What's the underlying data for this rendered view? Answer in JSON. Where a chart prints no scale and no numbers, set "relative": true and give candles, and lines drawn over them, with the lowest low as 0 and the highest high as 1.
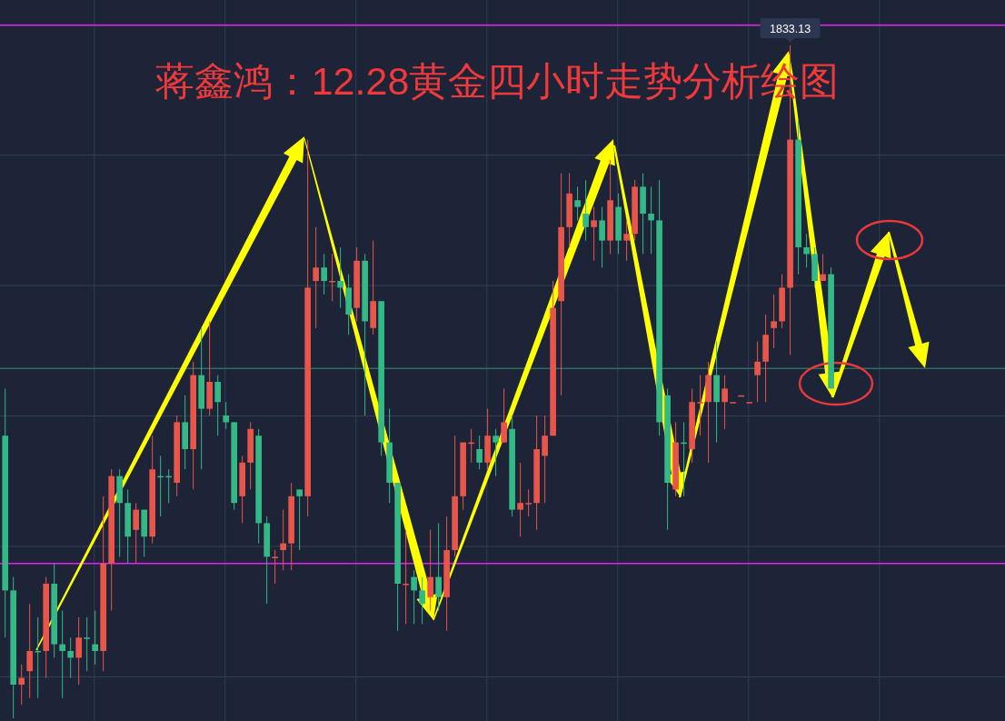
{
  "chart_data": {
    "type": "candlestick",
    "title": "蒋鑫鸿：12.28黄金四小时走势分析绘图",
    "relative": true,
    "categories": [
      null,
      null,
      null,
      null,
      null,
      null,
      null,
      null,
      null,
      null,
      null,
      null,
      null,
      null,
      null,
      null,
      null,
      null,
      null,
      null,
      null,
      null,
      null,
      null,
      null,
      null,
      null,
      null,
      null,
      null,
      null,
      null,
      null,
      null,
      null,
      null,
      null,
      null,
      null,
      null,
      null,
      null,
      null,
      null,
      null,
      null,
      null,
      null,
      null,
      null,
      null,
      null,
      null,
      null,
      null,
      null,
      null,
      null,
      null,
      null,
      null,
      null,
      null,
      null,
      null,
      null,
      null,
      null,
      null,
      null,
      null,
      null,
      null,
      null,
      null,
      null,
      null,
      null,
      null,
      null,
      null,
      null,
      null,
      null,
      null,
      null,
      null,
      null,
      null,
      null,
      null,
      null,
      null,
      null,
      null,
      null,
      null,
      null,
      null,
      null,
      null,
      null
    ],
    "ohlc": [
      [
        0.42,
        0.49,
        0.12,
        0.19
      ],
      [
        0.19,
        0.21,
        0.0,
        0.05
      ],
      [
        0.05,
        0.08,
        0.02,
        0.06
      ],
      [
        0.07,
        0.17,
        0.03,
        0.1
      ],
      [
        0.1,
        0.15,
        0.03,
        0.1
      ],
      [
        0.1,
        0.21,
        0.06,
        0.2
      ],
      [
        0.2,
        0.23,
        0.09,
        0.11
      ],
      [
        0.11,
        0.16,
        0.03,
        0.1
      ],
      [
        0.1,
        0.12,
        0.06,
        0.09
      ],
      [
        0.09,
        0.15,
        0.05,
        0.12
      ],
      [
        0.12,
        0.15,
        0.07,
        0.12
      ],
      [
        0.11,
        0.16,
        0.08,
        0.1
      ],
      [
        0.1,
        0.33,
        0.07,
        0.23
      ],
      [
        0.23,
        0.37,
        0.16,
        0.36
      ],
      [
        0.36,
        0.37,
        0.24,
        0.32
      ],
      [
        0.32,
        0.34,
        0.23,
        0.27
      ],
      [
        0.28,
        0.32,
        0.23,
        0.31
      ],
      [
        0.31,
        0.31,
        0.24,
        0.27
      ],
      [
        0.27,
        0.42,
        0.26,
        0.37
      ],
      [
        0.36,
        0.39,
        0.3,
        0.36
      ],
      [
        0.36,
        0.37,
        0.32,
        0.36
      ],
      [
        0.35,
        0.45,
        0.33,
        0.44
      ],
      [
        0.44,
        0.48,
        0.37,
        0.4
      ],
      [
        0.4,
        0.53,
        0.34,
        0.51
      ],
      [
        0.51,
        0.58,
        0.37,
        0.46
      ],
      [
        0.46,
        0.59,
        0.45,
        0.5
      ],
      [
        0.5,
        0.51,
        0.42,
        0.47
      ],
      [
        0.45,
        0.47,
        0.43,
        0.44
      ],
      [
        0.44,
        0.44,
        0.31,
        0.32
      ],
      [
        0.33,
        0.39,
        0.29,
        0.38
      ],
      [
        0.38,
        0.44,
        0.34,
        0.43
      ],
      [
        0.42,
        0.43,
        0.26,
        0.29
      ],
      [
        0.29,
        0.3,
        0.17,
        0.24
      ],
      [
        0.24,
        0.25,
        0.2,
        0.24
      ],
      [
        0.25,
        0.31,
        0.22,
        0.26
      ],
      [
        0.26,
        0.35,
        0.22,
        0.33
      ],
      [
        0.34,
        0.34,
        0.25,
        0.33
      ],
      [
        0.33,
        0.86,
        0.3,
        0.64
      ],
      [
        0.65,
        0.73,
        0.58,
        0.67
      ],
      [
        0.67,
        0.69,
        0.63,
        0.65
      ],
      [
        0.65,
        0.69,
        0.62,
        0.65
      ],
      [
        0.65,
        0.7,
        0.61,
        0.64
      ],
      [
        0.64,
        0.66,
        0.57,
        0.6
      ],
      [
        0.61,
        0.7,
        0.59,
        0.68
      ],
      [
        0.68,
        0.69,
        0.45,
        0.59
      ],
      [
        0.58,
        0.71,
        0.57,
        0.62
      ],
      [
        0.62,
        0.62,
        0.39,
        0.41
      ],
      [
        0.41,
        0.46,
        0.32,
        0.35
      ],
      [
        0.35,
        0.35,
        0.13,
        0.2
      ],
      [
        0.2,
        0.28,
        0.14,
        0.2
      ],
      [
        0.21,
        0.22,
        0.14,
        0.19
      ],
      [
        0.19,
        0.21,
        0.14,
        0.17
      ],
      [
        0.18,
        0.28,
        0.16,
        0.21
      ],
      [
        0.21,
        0.29,
        0.16,
        0.18
      ],
      [
        0.18,
        0.3,
        0.13,
        0.25
      ],
      [
        0.25,
        0.42,
        0.24,
        0.33
      ],
      [
        0.33,
        0.41,
        0.31,
        0.41
      ],
      [
        0.41,
        0.43,
        0.38,
        0.41
      ],
      [
        0.4,
        0.42,
        0.37,
        0.38
      ],
      [
        0.38,
        0.46,
        0.37,
        0.42
      ],
      [
        0.42,
        0.43,
        0.36,
        0.41
      ],
      [
        0.41,
        0.49,
        0.41,
        0.44
      ],
      [
        0.43,
        0.45,
        0.3,
        0.31
      ],
      [
        0.31,
        0.38,
        0.27,
        0.32
      ],
      [
        0.32,
        0.34,
        0.3,
        0.32
      ],
      [
        0.32,
        0.45,
        0.28,
        0.4
      ],
      [
        0.39,
        0.45,
        0.32,
        0.42
      ],
      [
        0.42,
        0.65,
        0.42,
        0.61
      ],
      [
        0.62,
        0.81,
        0.48,
        0.73
      ],
      [
        0.73,
        0.81,
        0.7,
        0.78
      ],
      [
        0.77,
        0.79,
        0.74,
        0.76
      ],
      [
        0.75,
        0.8,
        0.71,
        0.73
      ],
      [
        0.73,
        0.76,
        0.68,
        0.74
      ],
      [
        0.74,
        0.76,
        0.67,
        0.71
      ],
      [
        0.71,
        0.83,
        0.69,
        0.77
      ],
      [
        0.76,
        0.78,
        0.69,
        0.71
      ],
      [
        0.71,
        0.74,
        0.68,
        0.72
      ],
      [
        0.72,
        0.8,
        0.71,
        0.79
      ],
      [
        0.79,
        0.81,
        0.69,
        0.75
      ],
      [
        0.75,
        0.79,
        0.69,
        0.74
      ],
      [
        0.74,
        0.8,
        0.42,
        0.44
      ],
      [
        0.48,
        0.49,
        0.28,
        0.35
      ],
      [
        0.34,
        0.44,
        0.33,
        0.41
      ],
      [
        0.41,
        0.44,
        0.33,
        0.41
      ],
      [
        0.4,
        0.49,
        0.38,
        0.47
      ],
      [
        0.47,
        0.51,
        0.42,
        0.47
      ],
      [
        0.47,
        0.53,
        0.38,
        0.51
      ],
      [
        0.51,
        0.56,
        0.41,
        0.47
      ],
      [
        0.47,
        0.51,
        0.43,
        0.49
      ],
      [
        0.47,
        0.47,
        0.47,
        0.47
      ],
      [
        0.48,
        0.48,
        0.48,
        0.48
      ],
      [
        0.47,
        0.47,
        0.47,
        0.47
      ],
      [
        0.51,
        0.56,
        0.47,
        0.53
      ],
      [
        0.53,
        0.6,
        0.47,
        0.57
      ],
      [
        0.58,
        0.63,
        0.55,
        0.59
      ],
      [
        0.59,
        0.66,
        0.58,
        0.64
      ],
      [
        0.64,
        1.0,
        0.54,
        0.86
      ],
      [
        0.86,
        0.89,
        0.66,
        0.7
      ],
      [
        0.7,
        0.72,
        0.67,
        0.69
      ],
      [
        0.69,
        0.7,
        0.64,
        0.65
      ],
      [
        0.65,
        0.69,
        0.65,
        0.66
      ],
      [
        0.66,
        0.67,
        0.49,
        0.49
      ]
    ],
    "colors": [
      "#33b886",
      "#33b886",
      "#e8554a",
      "#e8554a",
      "#33b886",
      "#e8554a",
      "#33b886",
      "#33b886",
      "#33b886",
      "#e8554a",
      "#33b886",
      "#33b886",
      "#e8554a",
      "#e8554a",
      "#33b886",
      "#33b886",
      "#e8554a",
      "#33b886",
      "#e8554a",
      "#33b886",
      "#33b886",
      "#e8554a",
      "#33b886",
      "#e8554a",
      "#33b886",
      "#e8554a",
      "#33b886",
      "#33b886",
      "#33b886",
      "#e8554a",
      "#e8554a",
      "#33b886",
      "#33b886",
      "#e8554a",
      "#e8554a",
      "#e8554a",
      "#33b886",
      "#e8554a",
      "#e8554a",
      "#33b886",
      "#e8554a",
      "#33b886",
      "#33b886",
      "#e8554a",
      "#33b886",
      "#e8554a",
      "#33b886",
      "#33b886",
      "#33b886",
      "#e8554a",
      "#33b886",
      "#33b886",
      "#e8554a",
      "#33b886",
      "#e8554a",
      "#e8554a",
      "#e8554a",
      "#e8554a",
      "#33b886",
      "#e8554a",
      "#33b886",
      "#e8554a",
      "#33b886",
      "#e8554a",
      "#e8554a",
      "#e8554a",
      "#e8554a",
      "#e8554a",
      "#e8554a",
      "#e8554a",
      "#33b886",
      "#33b886",
      "#e8554a",
      "#33b886",
      "#e8554a",
      "#33b886",
      "#e8554a",
      "#e8554a",
      "#33b886",
      "#33b886",
      "#33b886",
      "#33b886",
      "#e8554a",
      "#33b886",
      "#e8554a",
      "#e8554a",
      "#e8554a",
      "#33b886",
      "#e8554a",
      "#e8554a",
      "#e8554a",
      "#e8554a",
      "#e8554a",
      "#e8554a",
      "#e8554a",
      "#e8554a",
      "#e8554a",
      "#33b886",
      "#33b886",
      "#33b886",
      "#e8554a",
      "#33b886"
    ],
    "annotations": [
      "1833.13"
    ],
    "ref_lines": [
      {
        "axis": "y",
        "value": 1.03,
        "color": "#e81ef5"
      },
      {
        "axis": "y",
        "value": 0.23,
        "color": "#e81ef5"
      },
      {
        "axis": "y",
        "value": 0.52,
        "color": "#2f6b60"
      }
    ],
    "grid": true
  }
}
